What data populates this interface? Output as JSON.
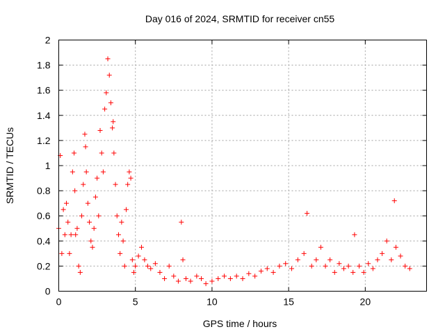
{
  "chart_data": {
    "type": "scatter",
    "title": "Day 016 of 2024, SRMTID for receiver cn55",
    "xlabel": "GPS time / hours",
    "ylabel": "SRMTID / TECUs",
    "xlim": [
      0,
      24
    ],
    "ylim": [
      0,
      2
    ],
    "xticks": [
      0,
      5,
      10,
      15,
      20
    ],
    "yticks": [
      0,
      0.2,
      0.4,
      0.6,
      0.8,
      1,
      1.2,
      1.4,
      1.6,
      1.8,
      2
    ],
    "xtick_labels": [
      "0",
      "5",
      "10",
      "15",
      "20"
    ],
    "ytick_labels": [
      "0",
      "0.2",
      "0.4",
      "0.6",
      "0.8",
      "1",
      "1.2",
      "1.4",
      "1.6",
      "1.8",
      "2"
    ],
    "grid": true,
    "marker": "+",
    "color": "#ff0000",
    "series": [
      {
        "name": "SRMTID",
        "x": [
          0.0,
          0.1,
          0.2,
          0.3,
          0.4,
          0.5,
          0.6,
          0.7,
          0.8,
          0.9,
          1.0,
          1.05,
          1.1,
          1.2,
          1.3,
          1.4,
          1.5,
          1.6,
          1.7,
          1.75,
          1.8,
          1.9,
          2.0,
          2.1,
          2.2,
          2.3,
          2.4,
          2.5,
          2.6,
          2.7,
          2.8,
          2.9,
          3.0,
          3.1,
          3.2,
          3.3,
          3.4,
          3.5,
          3.55,
          3.6,
          3.7,
          3.8,
          3.9,
          4.0,
          4.1,
          4.2,
          4.3,
          4.4,
          4.5,
          4.6,
          4.7,
          4.8,
          4.9,
          5.0,
          5.2,
          5.4,
          5.6,
          5.8,
          6.0,
          6.3,
          6.6,
          6.9,
          7.2,
          7.5,
          7.8,
          8.0,
          8.1,
          8.3,
          8.6,
          9.0,
          9.3,
          9.6,
          10.0,
          10.4,
          10.8,
          11.2,
          11.6,
          12.0,
          12.4,
          12.8,
          13.2,
          13.6,
          14.0,
          14.4,
          14.8,
          15.2,
          15.6,
          16.0,
          16.2,
          16.5,
          16.8,
          17.1,
          17.4,
          17.7,
          18.0,
          18.3,
          18.6,
          18.9,
          19.2,
          19.3,
          19.6,
          19.9,
          20.2,
          20.5,
          20.8,
          21.1,
          21.4,
          21.7,
          21.9,
          22.0,
          22.3,
          22.6,
          22.9
        ],
        "y": [
          0.5,
          1.08,
          0.3,
          0.65,
          0.45,
          0.7,
          0.55,
          0.3,
          0.45,
          0.95,
          1.1,
          0.8,
          0.45,
          0.5,
          0.2,
          0.15,
          0.6,
          0.85,
          1.25,
          1.15,
          0.95,
          0.7,
          0.55,
          0.4,
          0.35,
          0.5,
          0.75,
          0.9,
          0.6,
          1.28,
          1.1,
          0.95,
          1.45,
          1.58,
          1.85,
          1.72,
          1.5,
          1.3,
          1.35,
          1.1,
          0.85,
          0.6,
          0.45,
          0.3,
          0.55,
          0.4,
          0.2,
          0.65,
          0.85,
          0.95,
          0.9,
          0.25,
          0.15,
          0.2,
          0.28,
          0.35,
          0.25,
          0.2,
          0.18,
          0.22,
          0.15,
          0.1,
          0.2,
          0.12,
          0.08,
          0.55,
          0.25,
          0.1,
          0.08,
          0.12,
          0.1,
          0.06,
          0.08,
          0.1,
          0.12,
          0.1,
          0.12,
          0.1,
          0.14,
          0.12,
          0.16,
          0.18,
          0.15,
          0.2,
          0.22,
          0.18,
          0.25,
          0.3,
          0.62,
          0.2,
          0.25,
          0.35,
          0.2,
          0.25,
          0.15,
          0.22,
          0.18,
          0.2,
          0.15,
          0.45,
          0.2,
          0.15,
          0.22,
          0.18,
          0.25,
          0.3,
          0.4,
          0.25,
          0.72,
          0.35,
          0.28,
          0.2,
          0.18
        ]
      }
    ]
  }
}
